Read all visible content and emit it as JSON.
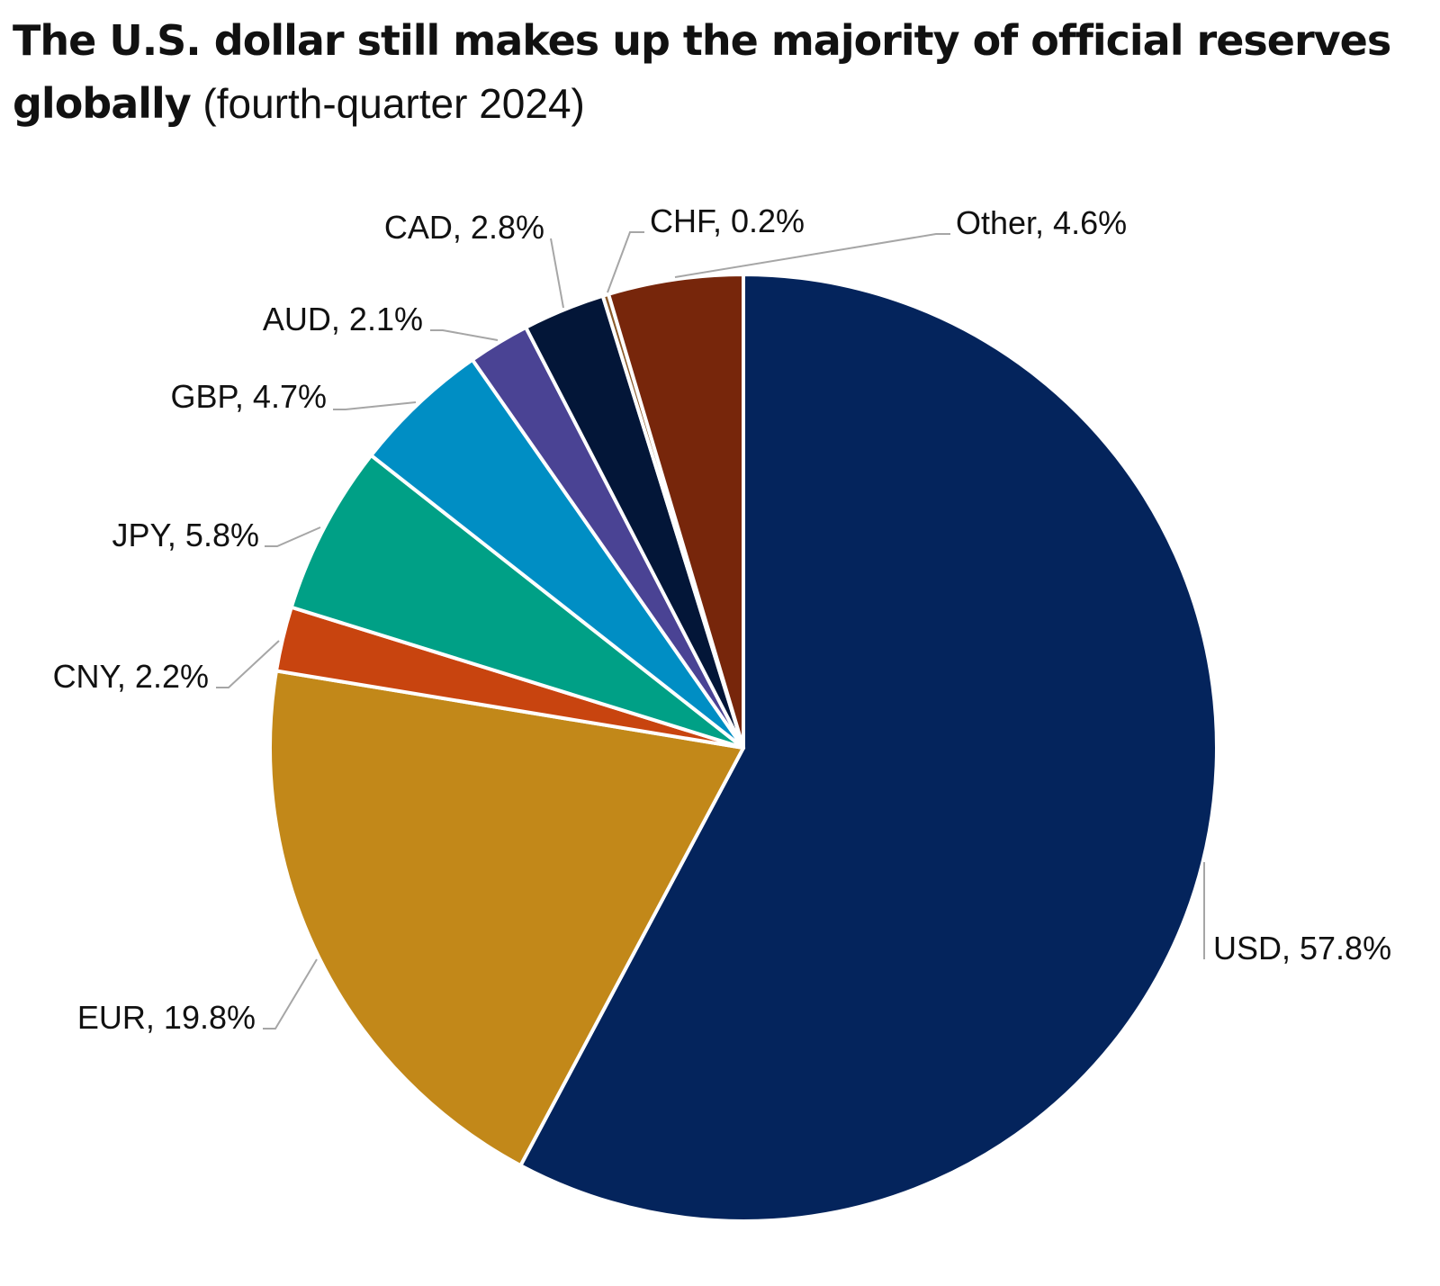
{
  "chart_data": {
    "type": "pie",
    "title": "The U.S. dollar still makes up the majority of official reserves globally",
    "subtitle": "(fourth-quarter 2024)",
    "start_angle_deg": 0,
    "direction": "clockwise",
    "slices": [
      {
        "category": "USD",
        "value": 57.8,
        "label": "USD, 57.8%",
        "color": "#04245c"
      },
      {
        "category": "EUR",
        "value": 19.8,
        "label": "EUR, 19.8%",
        "color": "#c28819"
      },
      {
        "category": "CNY",
        "value": 2.2,
        "label": "CNY, 2.2%",
        "color": "#c8440f"
      },
      {
        "category": "JPY",
        "value": 5.8,
        "label": "JPY, 5.8%",
        "color": "#00a086"
      },
      {
        "category": "GBP",
        "value": 4.7,
        "label": "GBP, 4.7%",
        "color": "#008ec4"
      },
      {
        "category": "AUD",
        "value": 2.1,
        "label": "AUD, 2.1%",
        "color": "#4a4394"
      },
      {
        "category": "CAD",
        "value": 2.8,
        "label": "CAD, 2.8%",
        "color": "#031638"
      },
      {
        "category": "CHF",
        "value": 0.2,
        "label": "CHF, 0.2%",
        "color": "#8a5a2a"
      },
      {
        "category": "Other",
        "value": 4.6,
        "label": "Other, 4.6%",
        "color": "#77260b"
      }
    ]
  }
}
